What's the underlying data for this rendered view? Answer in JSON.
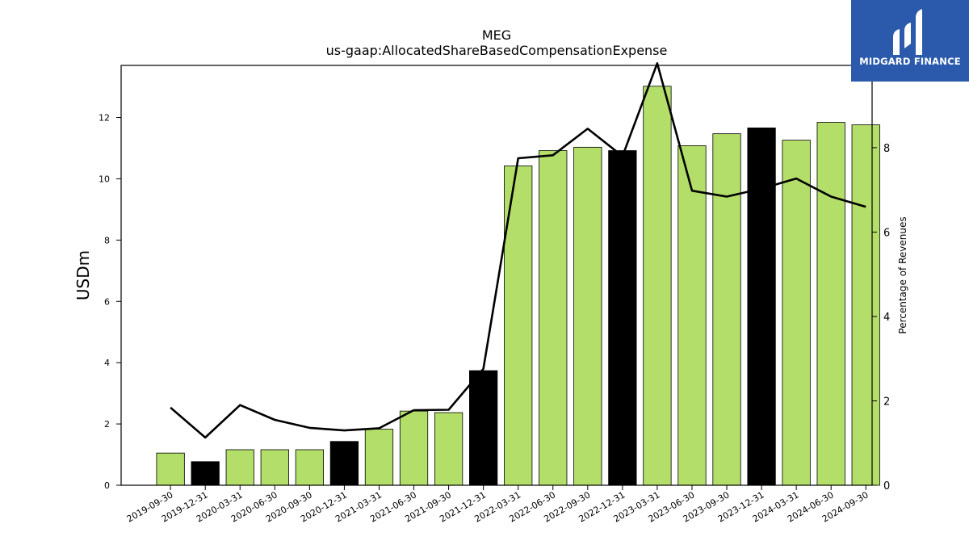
{
  "chart_data": {
    "type": "bar+line",
    "title": "MEG",
    "subtitle": "us-gaap:AllocatedShareBasedCompensationExpense",
    "ylabel": "USDm",
    "y2label": "Percentage of Revenues",
    "ylim": [
      0,
      13.7
    ],
    "y2lim": [
      0,
      9.95
    ],
    "yticks": [
      0,
      2,
      4,
      6,
      8,
      10,
      12
    ],
    "y2ticks": [
      0,
      2,
      4,
      6,
      8
    ],
    "categories": [
      "2019-09-30",
      "2019-12-31",
      "2020-03-31",
      "2020-06-30",
      "2020-09-30",
      "2020-12-31",
      "2021-03-31",
      "2021-06-30",
      "2021-09-30",
      "2021-12-31",
      "2022-03-31",
      "2022-06-30",
      "2022-09-30",
      "2022-12-31",
      "2023-03-31",
      "2023-06-30",
      "2023-09-30",
      "2023-12-31",
      "2024-03-31",
      "2024-06-30",
      "2024-09-30"
    ],
    "bars": [
      1.05,
      0.77,
      1.16,
      1.16,
      1.16,
      1.43,
      1.83,
      2.42,
      2.37,
      3.74,
      10.42,
      10.92,
      11.03,
      10.92,
      13.02,
      11.08,
      11.47,
      11.66,
      11.26,
      11.84,
      11.76
    ],
    "bar_highlight": [
      false,
      true,
      false,
      false,
      false,
      true,
      false,
      false,
      false,
      true,
      false,
      false,
      false,
      true,
      false,
      false,
      false,
      true,
      false,
      false,
      false
    ],
    "line": [
      1.84,
      1.13,
      1.9,
      1.55,
      1.36,
      1.3,
      1.35,
      1.78,
      1.79,
      2.76,
      7.75,
      7.82,
      8.45,
      7.8,
      10.0,
      6.98,
      6.84,
      7.03,
      7.27,
      6.84,
      6.6
    ],
    "colors": {
      "bar": "#b3de69",
      "bar_highlight": "#000000",
      "line": "#000000"
    },
    "grid": false
  },
  "logo": {
    "text": "MIDGARD FINANCE"
  }
}
